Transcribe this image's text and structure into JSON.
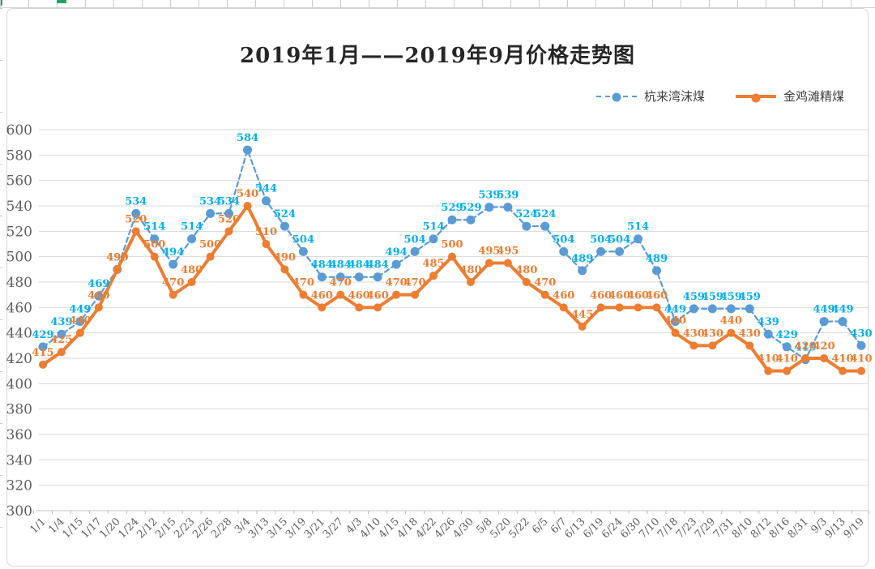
{
  "chart_data": {
    "type": "line",
    "title": "2019年1月——2019年9月价格走势图",
    "categories": [
      "1/1",
      "1/4",
      "1/15",
      "1/17",
      "1/20",
      "1/24",
      "2/12",
      "2/15",
      "2/23",
      "2/26",
      "2/28",
      "3/4",
      "3/13",
      "3/15",
      "3/19",
      "3/21",
      "3/27",
      "4/3",
      "4/10",
      "4/15",
      "4/18",
      "4/22",
      "4/26",
      "4/30",
      "5/8",
      "5/20",
      "5/22",
      "6/5",
      "6/7",
      "6/13",
      "6/19",
      "6/24",
      "6/30",
      "7/10",
      "7/18",
      "7/23",
      "7/29",
      "7/31",
      "8/10",
      "8/12",
      "8/16",
      "8/31",
      "9/3",
      "9/13",
      "9/19"
    ],
    "series": [
      {
        "name": "杭来湾沫煤",
        "style": "dashed",
        "line_color": "#5B9BD5",
        "label_color": "#00B0F0",
        "values": [
          429,
          439,
          449,
          469,
          490,
          534,
          514,
          494,
          514,
          534,
          534,
          584,
          544,
          524,
          504,
          484,
          484,
          484,
          484,
          494,
          504,
          514,
          529,
          529,
          539,
          539,
          524,
          524,
          504,
          489,
          504,
          504,
          514,
          489,
          449,
          459,
          459,
          459,
          459,
          439,
          429,
          419,
          449,
          449,
          430
        ]
      },
      {
        "name": "金鸡滩精煤",
        "style": "solid",
        "line_color": "#ED7D31",
        "label_color": "#ED7D31",
        "values": [
          415,
          425,
          440,
          460,
          490,
          520,
          500,
          470,
          480,
          500,
          520,
          540,
          510,
          490,
          470,
          460,
          470,
          460,
          460,
          470,
          470,
          485,
          500,
          480,
          495,
          495,
          480,
          470,
          460,
          445,
          460,
          460,
          460,
          460,
          440,
          430,
          430,
          440,
          430,
          410,
          410,
          420,
          420,
          410,
          410
        ]
      }
    ],
    "ylim": [
      300,
      600
    ],
    "ytick_step": 20,
    "grid": true,
    "legend_position": "top-right",
    "axis_text_color": "#5F5F5F",
    "gridline_color": "#D9D9D9",
    "axis_line_color": "#BFBFBF"
  },
  "decorations": {
    "selection_color": "#21A366"
  }
}
